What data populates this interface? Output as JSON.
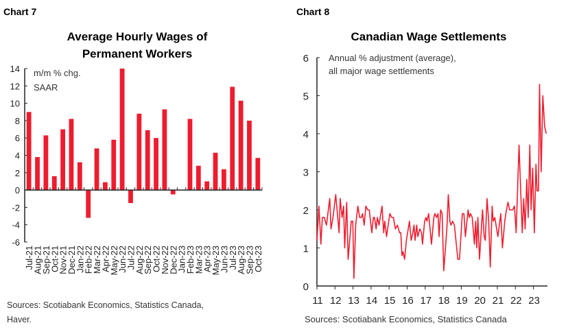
{
  "chart_data": [
    {
      "type": "bar",
      "label": "Chart 7",
      "title": [
        "Average Hourly Wages of",
        "Permanent Workers"
      ],
      "annotation": [
        "m/m % chg.",
        "SAAR"
      ],
      "ylim": [
        -6,
        14
      ],
      "yticks": [
        14,
        12,
        10,
        8,
        6,
        4,
        2,
        0,
        -2,
        -4,
        -6
      ],
      "categories": [
        "Jul-21",
        "Aug-21",
        "Sep-21",
        "Oct-21",
        "Nov-21",
        "Dec-21",
        "Jan-22",
        "Feb-22",
        "Mar-22",
        "Apr-22",
        "May-22",
        "Jun-22",
        "Jul-22",
        "Aug-22",
        "Sep-22",
        "Oct-22",
        "Nov-22",
        "Dec-22",
        "Jan-23",
        "Feb-23",
        "Mar-23",
        "Apr-23",
        "May-23",
        "Jun-23",
        "Jul-23",
        "Aug-23",
        "Sep-23",
        "Oct-23"
      ],
      "values": [
        9.0,
        3.8,
        6.3,
        1.6,
        7.0,
        8.2,
        3.2,
        -3.2,
        4.8,
        0.9,
        5.8,
        14.0,
        -1.5,
        8.8,
        6.9,
        6.0,
        9.3,
        -0.5,
        0.05,
        8.2,
        2.8,
        1.0,
        4.3,
        2.4,
        11.9,
        10.3,
        8.0,
        3.7
      ],
      "color": "#ee1c2e",
      "source": [
        "Sources: Scotiabank Economics, Statistics Canada,",
        "Haver."
      ]
    },
    {
      "type": "line",
      "label": "Chart 8",
      "title": "Canadian Wage Settlements",
      "annotation": [
        "Annual % adjustment (average),",
        "all major wage settlements"
      ],
      "ylim": [
        0,
        6
      ],
      "yticks": [
        6,
        5,
        4,
        3,
        2,
        1,
        0
      ],
      "xlim": [
        11,
        23.8
      ],
      "xticks": [
        "11",
        "12",
        "13",
        "14",
        "15",
        "16",
        "17",
        "18",
        "19",
        "20",
        "21",
        "22",
        "23"
      ],
      "x": [
        11.0,
        11.11,
        11.22,
        11.3,
        11.41,
        11.53,
        11.71,
        11.78,
        11.89,
        12.04,
        12.23,
        12.29,
        12.39,
        12.48,
        12.54,
        12.65,
        12.73,
        12.9,
        12.99,
        13.05,
        13.15,
        13.27,
        13.37,
        13.46,
        13.53,
        13.62,
        13.71,
        13.81,
        13.9,
        14.04,
        14.13,
        14.19,
        14.28,
        14.35,
        14.44,
        14.61,
        14.7,
        14.76,
        14.86,
        15.04,
        15.14,
        15.24,
        15.35,
        15.46,
        15.58,
        15.65,
        15.71,
        15.77,
        15.86,
        15.96,
        16.13,
        16.22,
        16.32,
        16.38,
        16.44,
        16.53,
        16.59,
        16.7,
        16.8,
        16.85,
        16.97,
        17.04,
        17.1,
        17.19,
        17.35,
        17.48,
        17.54,
        17.63,
        17.71,
        17.77,
        17.86,
        17.94,
        18.03,
        18.2,
        18.28,
        18.37,
        18.43,
        18.52,
        18.62,
        18.81,
        18.9,
        19.06,
        19.15,
        19.23,
        19.38,
        19.44,
        19.51,
        19.61,
        19.73,
        19.8,
        19.86,
        19.92,
        20.01,
        20.18,
        20.27,
        20.33,
        20.43,
        20.52,
        20.61,
        20.71,
        20.77,
        20.86,
        21.03,
        21.19,
        21.28,
        21.41,
        21.47,
        21.59,
        21.68,
        21.85,
        21.95,
        22.04,
        22.2,
        22.38,
        22.46,
        22.54,
        22.63,
        22.71,
        22.8,
        22.87,
        22.96,
        23.05,
        23.14,
        23.2,
        23.28,
        23.34,
        23.43,
        23.52,
        23.62,
        23.71
      ],
      "y": [
        1.2,
        2.1,
        1.1,
        1.8,
        1.8,
        1.6,
        2.3,
        1.5,
        1.8,
        2.4,
        1.4,
        2.3,
        1.8,
        2.1,
        1.0,
        2.2,
        0.7,
        1.7,
        1.7,
        0.2,
        1.6,
        2.1,
        1.8,
        1.8,
        1.9,
        1.6,
        2.1,
        2.0,
        2.0,
        1.4,
        1.8,
        1.8,
        1.5,
        1.8,
        1.6,
        2.1,
        1.4,
        1.7,
        1.3,
        1.9,
        1.8,
        1.8,
        1.5,
        1.6,
        1.4,
        1.4,
        0.8,
        0.9,
        0.7,
        1.2,
        1.7,
        1.2,
        1.4,
        1.6,
        1.2,
        1.6,
        1.3,
        1.5,
        1.4,
        1.1,
        1.7,
        1.8,
        1.7,
        1.9,
        1.1,
        1.8,
        1.9,
        1.8,
        1.9,
        1.3,
        2.0,
        1.9,
        0.4,
        1.5,
        2.4,
        1.7,
        1.6,
        1.7,
        1.6,
        0.7,
        0.7,
        1.9,
        1.9,
        1.3,
        2.0,
        1.8,
        1.9,
        1.8,
        1.1,
        1.7,
        1.0,
        1.8,
        0.7,
        2.0,
        1.3,
        1.2,
        2.3,
        1.7,
        0.5,
        2.1,
        1.7,
        1.8,
        1.3,
        1.9,
        1.0,
        1.7,
        1.9,
        2.2,
        2.0,
        2.0,
        2.1,
        1.4,
        3.7,
        1.4,
        2.3,
        1.5,
        2.8,
        1.8,
        3.7,
        2.0,
        3.1,
        1.4,
        3.2,
        2.5,
        2.5,
        5.3,
        3.0,
        5.0,
        4.2,
        4.0
      ],
      "color": "#ee1c2e",
      "source": "Sources: Scotiabank Economics, Statistics Canada"
    }
  ]
}
